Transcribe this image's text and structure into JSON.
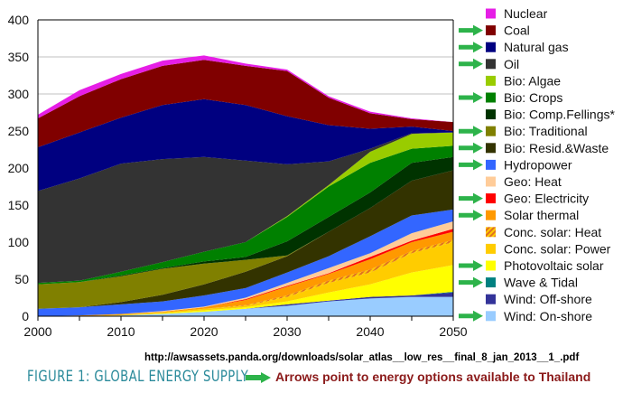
{
  "chart_data": {
    "type": "area",
    "stacked": true,
    "title": "",
    "xlabel": "",
    "ylabel": "",
    "x": [
      2000,
      2005,
      2010,
      2015,
      2020,
      2025,
      2030,
      2035,
      2040,
      2045,
      2050
    ],
    "xticks": [
      "2000",
      "2010",
      "2020",
      "2030",
      "2040",
      "2050"
    ],
    "yticks": [
      "0",
      "50",
      "100",
      "150",
      "200",
      "250",
      "300",
      "350",
      "400"
    ],
    "ylim": [
      0,
      400
    ],
    "xlim": [
      2000,
      2050
    ],
    "grid": "horizontal",
    "legend_position": "right",
    "series": [
      {
        "name": "Wind: On-shore",
        "color": "#99ccff",
        "arrow": true,
        "values": [
          0,
          0,
          1,
          3,
          6,
          10,
          14,
          20,
          24,
          26,
          26
        ]
      },
      {
        "name": "Wind: Off-shore",
        "color": "#333399",
        "arrow": false,
        "values": [
          0,
          0,
          0,
          0,
          0,
          0,
          2,
          1,
          2,
          2,
          6
        ]
      },
      {
        "name": "Wave & Tidal",
        "color": "#008080",
        "arrow": true,
        "values": [
          0,
          0,
          0,
          0,
          0,
          0,
          0,
          0,
          0,
          0,
          1
        ]
      },
      {
        "name": "Photovoltaic solar",
        "color": "#ffff00",
        "arrow": true,
        "values": [
          0,
          0,
          0,
          1,
          2,
          2,
          4,
          11,
          17,
          31,
          36
        ]
      },
      {
        "name": "Conc. solar: Power",
        "color": "#ffcc00",
        "arrow": false,
        "values": [
          0,
          0,
          1,
          1,
          2,
          2,
          6,
          13,
          16,
          26,
          31
        ]
      },
      {
        "name": "Conc. solar: Heat",
        "color": "#f0a030",
        "hatched": true,
        "arrow": false,
        "values": [
          0,
          0,
          0,
          0,
          0,
          1,
          2,
          3,
          4,
          3,
          3
        ]
      },
      {
        "name": "Solar thermal",
        "color": "#ff9900",
        "arrow": true,
        "values": [
          0,
          1,
          1,
          1,
          2,
          7,
          12,
          9,
          14,
          12,
          11
        ]
      },
      {
        "name": "Geo: Electricity",
        "color": "#ff0000",
        "arrow": true,
        "values": [
          0,
          0,
          0,
          0,
          0,
          1,
          1,
          1,
          3,
          2,
          4
        ]
      },
      {
        "name": "Geo: Heat",
        "color": "#ffcc99",
        "arrow": false,
        "values": [
          0,
          0,
          0,
          1,
          1,
          2,
          4,
          7,
          5,
          10,
          10
        ]
      },
      {
        "name": "Hydropower",
        "color": "#3366ff",
        "arrow": true,
        "values": [
          10,
          11,
          13,
          13,
          15,
          13,
          14,
          16,
          23,
          24,
          16
        ]
      },
      {
        "name": "Bio: Resid.&Waste",
        "color": "#333300",
        "arrow": true,
        "values": [
          0,
          0,
          3,
          9,
          15,
          22,
          22,
          33,
          38,
          47,
          53
        ]
      },
      {
        "name": "Bio: Traditional",
        "color": "#808000",
        "arrow": true,
        "values": [
          33,
          34,
          35,
          35,
          28,
          16,
          1,
          0,
          0,
          0,
          0
        ]
      },
      {
        "name": "Bio: Comp.Fellings*",
        "color": "#003300",
        "arrow": false,
        "values": [
          0,
          0,
          1,
          1,
          3,
          4,
          19,
          20,
          21,
          24,
          18
        ]
      },
      {
        "name": "Bio: Crops",
        "color": "#008000",
        "arrow": true,
        "values": [
          2,
          2,
          5,
          8,
          13,
          20,
          33,
          41,
          40,
          19,
          15
        ]
      },
      {
        "name": "Bio: Algae",
        "color": "#99cc00",
        "arrow": false,
        "values": [
          0,
          0,
          0,
          0,
          0,
          0,
          1,
          2,
          15,
          20,
          18
        ]
      },
      {
        "name": "Oil",
        "color": "#333333",
        "arrow": true,
        "values": [
          124,
          138,
          146,
          139,
          128,
          110,
          70,
          32,
          4,
          1,
          0
        ]
      },
      {
        "name": "Natural gas",
        "color": "#000080",
        "arrow": true,
        "values": [
          59,
          62,
          62,
          73,
          78,
          75,
          65,
          49,
          27,
          9,
          2
        ]
      },
      {
        "name": "Coal",
        "color": "#800000",
        "arrow": true,
        "values": [
          39,
          49,
          52,
          53,
          53,
          53,
          61,
          37,
          21,
          10,
          12
        ]
      },
      {
        "name": "Nuclear",
        "color": "#e61ee6",
        "arrow": false,
        "values": [
          5,
          8,
          7,
          7,
          6,
          3,
          2,
          2,
          2,
          1,
          0
        ]
      }
    ]
  },
  "source_url": "http://awsassets.panda.org/downloads/solar_atlas__low_res__final_8_jan_2013__1_.pdf",
  "figure_title": "FIGURE 1: GLOBAL ENERGY SUPPLY",
  "arrow_note": "Arrows point to energy options available to Thailand",
  "arrow_color": "#2db34a"
}
